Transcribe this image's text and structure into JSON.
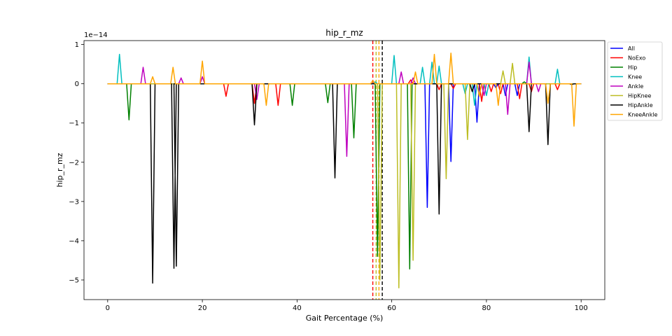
{
  "chart_data": {
    "type": "line",
    "title": "hip_r_mz",
    "xlabel": "Gait Percentage (%)",
    "ylabel": "hip_r_mz",
    "scale_label": "1e−14",
    "xlim": [
      -5,
      105
    ],
    "ylim": [
      -5.5,
      1.1
    ],
    "xticks": [
      0,
      20,
      40,
      60,
      80,
      100
    ],
    "xtick_labels": [
      "0",
      "20",
      "40",
      "60",
      "80",
      "100"
    ],
    "yticks": [
      1,
      0,
      -1,
      -2,
      -3,
      -4,
      -5
    ],
    "ytick_labels": [
      "1",
      "0",
      "−1",
      "−2",
      "−3",
      "−4",
      "−5"
    ],
    "legend_position": "outside-top-right",
    "grid": false,
    "vlines": [
      {
        "x": 56.0,
        "color": "#ff0000"
      },
      {
        "x": 56.7,
        "color": "#bcbd22"
      },
      {
        "x": 57.3,
        "color": "#ffa500"
      },
      {
        "x": 58.0,
        "color": "#000000"
      }
    ],
    "series": [
      {
        "name": "All",
        "color": "#0000ff",
        "spikes": [
          [
            67.5,
            -3.15
          ],
          [
            72.5,
            -1.98
          ],
          [
            78.0,
            -0.98
          ],
          [
            82.0,
            -0.1
          ],
          [
            84.0,
            -0.3
          ],
          [
            86.5,
            -0.3
          ]
        ]
      },
      {
        "name": "NoExo",
        "color": "#ff0000",
        "spikes": [
          [
            25.0,
            -0.32
          ],
          [
            31.0,
            -0.5
          ],
          [
            36.0,
            -0.55
          ],
          [
            64.0,
            0.1
          ],
          [
            70.0,
            -0.15
          ],
          [
            73.0,
            -0.12
          ],
          [
            79.0,
            -0.45
          ],
          [
            81.0,
            -0.2
          ],
          [
            83.0,
            -0.25
          ],
          [
            87.0,
            -0.38
          ],
          [
            89.5,
            -0.2
          ],
          [
            95.0,
            -0.15
          ]
        ]
      },
      {
        "name": "Hip",
        "color": "#008000",
        "spikes": [
          [
            4.5,
            -0.92
          ],
          [
            39.0,
            -0.55
          ],
          [
            46.5,
            -0.48
          ],
          [
            52.0,
            -1.38
          ],
          [
            57.0,
            -4.4
          ],
          [
            63.8,
            -4.72
          ],
          [
            88.0,
            0.05
          ]
        ]
      },
      {
        "name": "Knee",
        "color": "#00bfbf",
        "spikes": [
          [
            2.5,
            0.75
          ],
          [
            56.5,
            0.05
          ],
          [
            60.5,
            0.72
          ],
          [
            66.5,
            0.42
          ],
          [
            68.5,
            0.55
          ],
          [
            70.0,
            0.45
          ],
          [
            75.5,
            -0.25
          ],
          [
            77.5,
            -0.55
          ],
          [
            80.0,
            -0.3
          ],
          [
            89.0,
            0.68
          ],
          [
            95.0,
            0.37
          ]
        ]
      },
      {
        "name": "Ankle",
        "color": "#bf00bf",
        "spikes": [
          [
            7.5,
            0.42
          ],
          [
            15.5,
            0.15
          ],
          [
            20.0,
            0.18
          ],
          [
            31.5,
            -0.4
          ],
          [
            50.5,
            -1.85
          ],
          [
            62.0,
            0.3
          ],
          [
            64.5,
            0.15
          ],
          [
            79.5,
            -0.3
          ],
          [
            84.5,
            -0.78
          ],
          [
            89.0,
            0.55
          ],
          [
            91.0,
            -0.2
          ]
        ]
      },
      {
        "name": "HipKnee",
        "color": "#bcbd22",
        "spikes": [
          [
            57.5,
            -5.0
          ],
          [
            61.5,
            -5.2
          ],
          [
            64.5,
            -4.5
          ],
          [
            71.5,
            -2.42
          ],
          [
            76.0,
            -1.42
          ],
          [
            83.5,
            0.33
          ],
          [
            85.5,
            0.52
          ]
        ]
      },
      {
        "name": "HipAnkle",
        "color": "#000000",
        "spikes": [
          [
            9.5,
            -5.08
          ],
          [
            14.0,
            -4.7
          ],
          [
            14.5,
            -4.65
          ],
          [
            31.0,
            -1.05
          ],
          [
            48.0,
            -2.4
          ],
          [
            70.0,
            -3.32
          ],
          [
            77.0,
            -0.2
          ],
          [
            89.0,
            -1.22
          ],
          [
            93.0,
            -1.55
          ],
          [
            98.0,
            -0.02
          ]
        ]
      },
      {
        "name": "KneeAnkle",
        "color": "#ffa500",
        "spikes": [
          [
            9.5,
            0.18
          ],
          [
            13.8,
            0.42
          ],
          [
            20.0,
            0.58
          ],
          [
            33.5,
            -0.55
          ],
          [
            56.0,
            0.08
          ],
          [
            65.0,
            0.3
          ],
          [
            69.0,
            0.75
          ],
          [
            72.5,
            0.78
          ],
          [
            78.5,
            -0.32
          ],
          [
            82.5,
            -0.55
          ],
          [
            93.0,
            -0.5
          ],
          [
            98.5,
            -1.08
          ]
        ]
      }
    ]
  }
}
